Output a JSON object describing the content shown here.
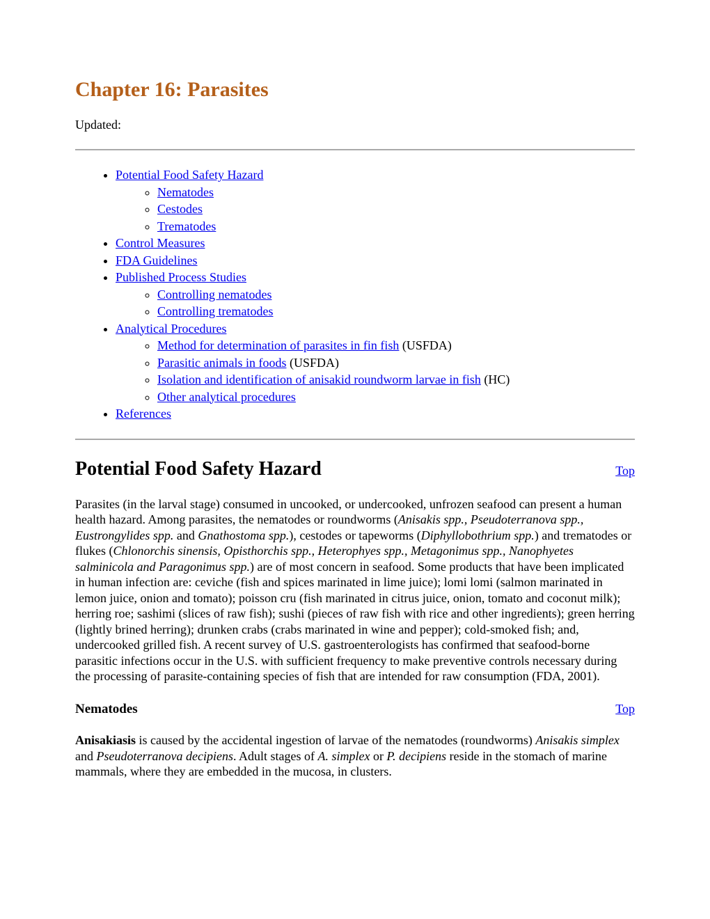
{
  "title": "Chapter 16: Parasites",
  "updated_label": "Updated:",
  "toc": {
    "items": [
      {
        "label": "Potential Food Safety Hazard",
        "children": [
          {
            "label": "Nematodes"
          },
          {
            "label": "Cestodes"
          },
          {
            "label": "Trematodes"
          }
        ]
      },
      {
        "label": "Control Measures"
      },
      {
        "label": "FDA Guidelines"
      },
      {
        "label": "Published Process Studies",
        "children": [
          {
            "label": "Controlling nematodes"
          },
          {
            "label": "Controlling trematodes"
          }
        ]
      },
      {
        "label": "Analytical Procedures",
        "children": [
          {
            "label": "Method for determination of parasites in fin fish",
            "suffix": " (USFDA)"
          },
          {
            "label": "Parasitic animals in foods",
            "suffix": " (USFDA)"
          },
          {
            "label": "Isolation and identification of anisakid roundworm larvae in fish",
            "suffix": " (HC)"
          },
          {
            "label": "Other analytical procedures"
          }
        ]
      },
      {
        "label": "References"
      }
    ]
  },
  "top_link": "Top",
  "section1": {
    "heading": "Potential Food Safety Hazard",
    "para_parts": [
      {
        "t": "Parasites (in the larval stage) consumed in uncooked, or undercooked, unfrozen seafood can present a human health hazard. Among parasites, the nematodes or roundworms ("
      },
      {
        "t": "Anisakis spp., Pseudoterranova spp., Eustrongylides spp.",
        "i": true
      },
      {
        "t": " and "
      },
      {
        "t": "Gnathostoma spp.",
        "i": true
      },
      {
        "t": "), cestodes or tapeworms ("
      },
      {
        "t": "Diphyllobothrium spp.",
        "i": true
      },
      {
        "t": ") and trematodes or flukes ("
      },
      {
        "t": "Chlonorchis sinensis, Opisthorchis spp., Heterophyes spp., Metagonimus spp., Nanophyetes salminicola and Paragonimus spp.",
        "i": true
      },
      {
        "t": ") are of most concern in seafood. Some products that have been implicated in human infection are: ceviche (fish and spices marinated in lime juice); lomi lomi (salmon marinated in lemon juice, onion and tomato); poisson cru (fish marinated in citrus juice, onion, tomato and coconut milk); herring roe; sashimi (slices of raw fish); sushi (pieces of raw fish with rice and other ingredients); green herring (lightly brined herring); drunken crabs (crabs marinated in wine and pepper); cold-smoked fish; and, undercooked grilled fish. A recent survey of U.S. gastroenterologists has confirmed that seafood-borne parasitic infections occur in the U.S. with sufficient frequency to make preventive controls necessary during the processing of parasite-containing species of fish that are intended for raw consumption (FDA, 2001)."
      }
    ]
  },
  "subsection1": {
    "heading": "Nematodes",
    "para_parts": [
      {
        "t": "Anisakiasis",
        "b": true
      },
      {
        "t": " is caused by the accidental ingestion of larvae of the nematodes (roundworms) "
      },
      {
        "t": "Anisakis simplex",
        "i": true
      },
      {
        "t": " and "
      },
      {
        "t": "Pseudoterranova decipiens",
        "i": true
      },
      {
        "t": ". Adult stages of "
      },
      {
        "t": "A. simplex",
        "i": true
      },
      {
        "t": " or "
      },
      {
        "t": "P. decipiens",
        "i": true
      },
      {
        "t": " reside in the stomach of marine mammals, where they are embedded in the mucosa, in clusters."
      }
    ]
  }
}
